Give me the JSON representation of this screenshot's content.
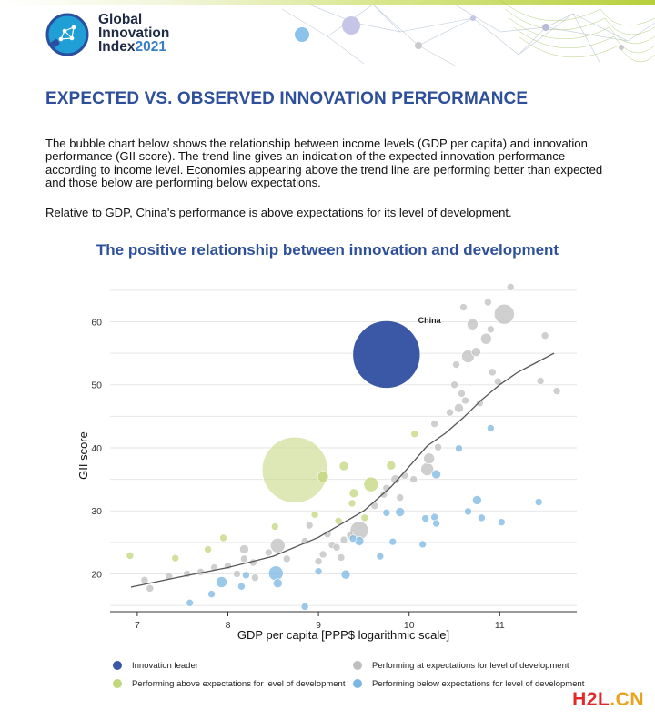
{
  "logo": {
    "line1": "Global",
    "line2": "Innovation",
    "line3_prefix": "Index",
    "line3_year": "2021",
    "icon": "lightbulb-network-icon"
  },
  "heading": "EXPECTED VS. OBSERVED INNOVATION PERFORMANCE",
  "paragraph1": "The bubble chart below shows the relationship between income levels (GDP per capita) and innovation performance (GII score). The trend line gives an indication of the expected innovation performance according to income level.  Economies appearing above the trend line are performing better than expected and those below are performing below expectations.",
  "paragraph2": "Relative to GDP, China’s performance is above expectations for its level of development.",
  "watermark": {
    "part1": "H2L",
    "part2": ".CN"
  },
  "colors": {
    "leader": "#3a58a6",
    "above": "#c2d67c",
    "at": "#bfbfbf",
    "below": "#7bb7e3",
    "title": "#2e4f9a"
  },
  "chart_data": {
    "type": "scatter",
    "title": "The positive relationship between innovation and development",
    "xlabel": "GDP per capita [PPP$ logarithmic scale]",
    "ylabel": "GII score",
    "xlim": [
      6.7,
      11.85
    ],
    "ylim": [
      14,
      67
    ],
    "xticks": [
      7,
      8,
      9,
      10,
      11
    ],
    "yticks": [
      20,
      30,
      40,
      50,
      60
    ],
    "grid": true,
    "legend_position": "bottom",
    "annotations": [
      {
        "text": "China",
        "x": 10.1,
        "y": 59.8
      }
    ],
    "trend_line": [
      [
        6.93,
        17.9
      ],
      [
        7.5,
        19.6
      ],
      [
        8.0,
        21.0
      ],
      [
        8.5,
        22.8
      ],
      [
        9.0,
        25.8
      ],
      [
        9.5,
        30.0
      ],
      [
        9.8,
        33.8
      ],
      [
        10.0,
        37.0
      ],
      [
        10.2,
        40.3
      ],
      [
        10.4,
        42.3
      ],
      [
        10.6,
        44.8
      ],
      [
        10.8,
        47.6
      ],
      [
        11.0,
        50.0
      ],
      [
        11.2,
        52.0
      ],
      [
        11.4,
        53.5
      ],
      [
        11.6,
        55.0
      ]
    ],
    "series": [
      {
        "name": "Innovation leader",
        "color": "#3a58a6",
        "points": [
          {
            "x": 9.75,
            "y": 54.8,
            "r": 37
          }
        ]
      },
      {
        "name": "Performing above expectations for level of development",
        "color": "#c2d67c",
        "points": [
          {
            "x": 8.74,
            "y": 36.5,
            "r": 36
          },
          {
            "x": 9.05,
            "y": 35.4,
            "r": 6
          },
          {
            "x": 9.28,
            "y": 37.1,
            "r": 5
          },
          {
            "x": 9.58,
            "y": 34.2,
            "r": 8
          },
          {
            "x": 9.39,
            "y": 32.8,
            "r": 5
          },
          {
            "x": 9.8,
            "y": 37.2,
            "r": 5
          },
          {
            "x": 9.37,
            "y": 31.2,
            "r": 4
          },
          {
            "x": 9.22,
            "y": 28.4,
            "r": 4
          },
          {
            "x": 8.96,
            "y": 29.4,
            "r": 4
          },
          {
            "x": 8.52,
            "y": 27.5,
            "r": 4
          },
          {
            "x": 7.95,
            "y": 25.7,
            "r": 4
          },
          {
            "x": 7.78,
            "y": 23.9,
            "r": 4
          },
          {
            "x": 7.42,
            "y": 22.5,
            "r": 4
          },
          {
            "x": 6.92,
            "y": 22.9,
            "r": 4
          },
          {
            "x": 10.06,
            "y": 42.2,
            "r": 4
          },
          {
            "x": 9.51,
            "y": 28.9,
            "r": 4
          }
        ]
      },
      {
        "name": "Performing at expectations for level of development",
        "color": "#bfbfbf",
        "points": [
          {
            "x": 11.05,
            "y": 61.2,
            "r": 11
          },
          {
            "x": 10.7,
            "y": 59.6,
            "r": 6
          },
          {
            "x": 10.65,
            "y": 54.5,
            "r": 7
          },
          {
            "x": 10.85,
            "y": 57.3,
            "r": 6
          },
          {
            "x": 10.9,
            "y": 58.8,
            "r": 4
          },
          {
            "x": 11.12,
            "y": 65.5,
            "r": 4
          },
          {
            "x": 10.87,
            "y": 63.1,
            "r": 4
          },
          {
            "x": 10.6,
            "y": 62.3,
            "r": 4
          },
          {
            "x": 10.74,
            "y": 55.2,
            "r": 5
          },
          {
            "x": 10.52,
            "y": 53.2,
            "r": 4
          },
          {
            "x": 10.92,
            "y": 52.0,
            "r": 4
          },
          {
            "x": 10.98,
            "y": 50.5,
            "r": 4
          },
          {
            "x": 10.5,
            "y": 50.0,
            "r": 4
          },
          {
            "x": 10.58,
            "y": 48.6,
            "r": 4
          },
          {
            "x": 10.55,
            "y": 46.3,
            "r": 5
          },
          {
            "x": 10.45,
            "y": 45.6,
            "r": 4
          },
          {
            "x": 10.62,
            "y": 47.5,
            "r": 4
          },
          {
            "x": 10.78,
            "y": 47.1,
            "r": 4
          },
          {
            "x": 11.45,
            "y": 50.6,
            "r": 4
          },
          {
            "x": 11.63,
            "y": 49.0,
            "r": 4
          },
          {
            "x": 11.5,
            "y": 57.8,
            "r": 4
          },
          {
            "x": 10.28,
            "y": 43.8,
            "r": 4
          },
          {
            "x": 10.22,
            "y": 38.3,
            "r": 6
          },
          {
            "x": 10.2,
            "y": 36.6,
            "r": 7
          },
          {
            "x": 10.32,
            "y": 40.1,
            "r": 4
          },
          {
            "x": 10.05,
            "y": 35.0,
            "r": 4
          },
          {
            "x": 9.95,
            "y": 35.6,
            "r": 4
          },
          {
            "x": 9.85,
            "y": 35.0,
            "r": 5
          },
          {
            "x": 9.72,
            "y": 32.6,
            "r": 4
          },
          {
            "x": 9.62,
            "y": 30.8,
            "r": 4
          },
          {
            "x": 9.9,
            "y": 32.1,
            "r": 4
          },
          {
            "x": 9.45,
            "y": 26.9,
            "r": 10
          },
          {
            "x": 9.35,
            "y": 26.1,
            "r": 4
          },
          {
            "x": 9.28,
            "y": 25.4,
            "r": 4
          },
          {
            "x": 9.15,
            "y": 24.6,
            "r": 4
          },
          {
            "x": 9.05,
            "y": 23.1,
            "r": 4
          },
          {
            "x": 8.85,
            "y": 25.2,
            "r": 4
          },
          {
            "x": 8.9,
            "y": 27.7,
            "r": 4
          },
          {
            "x": 8.55,
            "y": 24.5,
            "r": 8
          },
          {
            "x": 8.65,
            "y": 22.4,
            "r": 4
          },
          {
            "x": 8.45,
            "y": 23.4,
            "r": 4
          },
          {
            "x": 8.18,
            "y": 23.9,
            "r": 5
          },
          {
            "x": 8.18,
            "y": 22.4,
            "r": 4
          },
          {
            "x": 8.0,
            "y": 21.3,
            "r": 4
          },
          {
            "x": 7.85,
            "y": 21.0,
            "r": 4
          },
          {
            "x": 7.7,
            "y": 20.3,
            "r": 4
          },
          {
            "x": 7.55,
            "y": 20.0,
            "r": 4
          },
          {
            "x": 7.35,
            "y": 19.6,
            "r": 4
          },
          {
            "x": 7.14,
            "y": 17.7,
            "r": 4
          },
          {
            "x": 7.08,
            "y": 19.0,
            "r": 4
          },
          {
            "x": 8.1,
            "y": 20.0,
            "r": 4
          },
          {
            "x": 8.28,
            "y": 21.8,
            "r": 4
          },
          {
            "x": 9.0,
            "y": 22.0,
            "r": 4
          },
          {
            "x": 9.25,
            "y": 22.6,
            "r": 4
          },
          {
            "x": 8.3,
            "y": 19.4,
            "r": 4
          },
          {
            "x": 9.2,
            "y": 24.2,
            "r": 4
          },
          {
            "x": 9.1,
            "y": 26.3,
            "r": 4
          },
          {
            "x": 9.75,
            "y": 33.6,
            "r": 4
          }
        ]
      },
      {
        "name": "Performing below expectations for level of development",
        "color": "#7bb7e3",
        "points": [
          {
            "x": 8.53,
            "y": 20.1,
            "r": 8
          },
          {
            "x": 8.55,
            "y": 18.5,
            "r": 5
          },
          {
            "x": 7.93,
            "y": 18.7,
            "r": 6
          },
          {
            "x": 7.58,
            "y": 15.4,
            "r": 4
          },
          {
            "x": 7.82,
            "y": 16.8,
            "r": 4
          },
          {
            "x": 8.15,
            "y": 18.0,
            "r": 4
          },
          {
            "x": 8.85,
            "y": 14.8,
            "r": 4
          },
          {
            "x": 9.0,
            "y": 20.4,
            "r": 4
          },
          {
            "x": 9.3,
            "y": 19.9,
            "r": 5
          },
          {
            "x": 9.45,
            "y": 25.2,
            "r": 5
          },
          {
            "x": 9.38,
            "y": 25.6,
            "r": 4
          },
          {
            "x": 9.68,
            "y": 22.8,
            "r": 4
          },
          {
            "x": 9.82,
            "y": 25.1,
            "r": 4
          },
          {
            "x": 9.9,
            "y": 29.8,
            "r": 5
          },
          {
            "x": 10.15,
            "y": 24.7,
            "r": 4
          },
          {
            "x": 10.3,
            "y": 35.8,
            "r": 5
          },
          {
            "x": 10.28,
            "y": 29.0,
            "r": 4
          },
          {
            "x": 10.3,
            "y": 28.0,
            "r": 4
          },
          {
            "x": 10.18,
            "y": 28.8,
            "r": 4
          },
          {
            "x": 10.55,
            "y": 39.9,
            "r": 4
          },
          {
            "x": 10.65,
            "y": 29.9,
            "r": 4
          },
          {
            "x": 10.75,
            "y": 31.7,
            "r": 5
          },
          {
            "x": 10.9,
            "y": 43.1,
            "r": 4
          },
          {
            "x": 10.8,
            "y": 28.9,
            "r": 4
          },
          {
            "x": 11.02,
            "y": 28.2,
            "r": 4
          },
          {
            "x": 11.43,
            "y": 31.4,
            "r": 4
          },
          {
            "x": 8.2,
            "y": 19.8,
            "r": 4
          },
          {
            "x": 9.75,
            "y": 29.7,
            "r": 4
          }
        ]
      }
    ]
  }
}
